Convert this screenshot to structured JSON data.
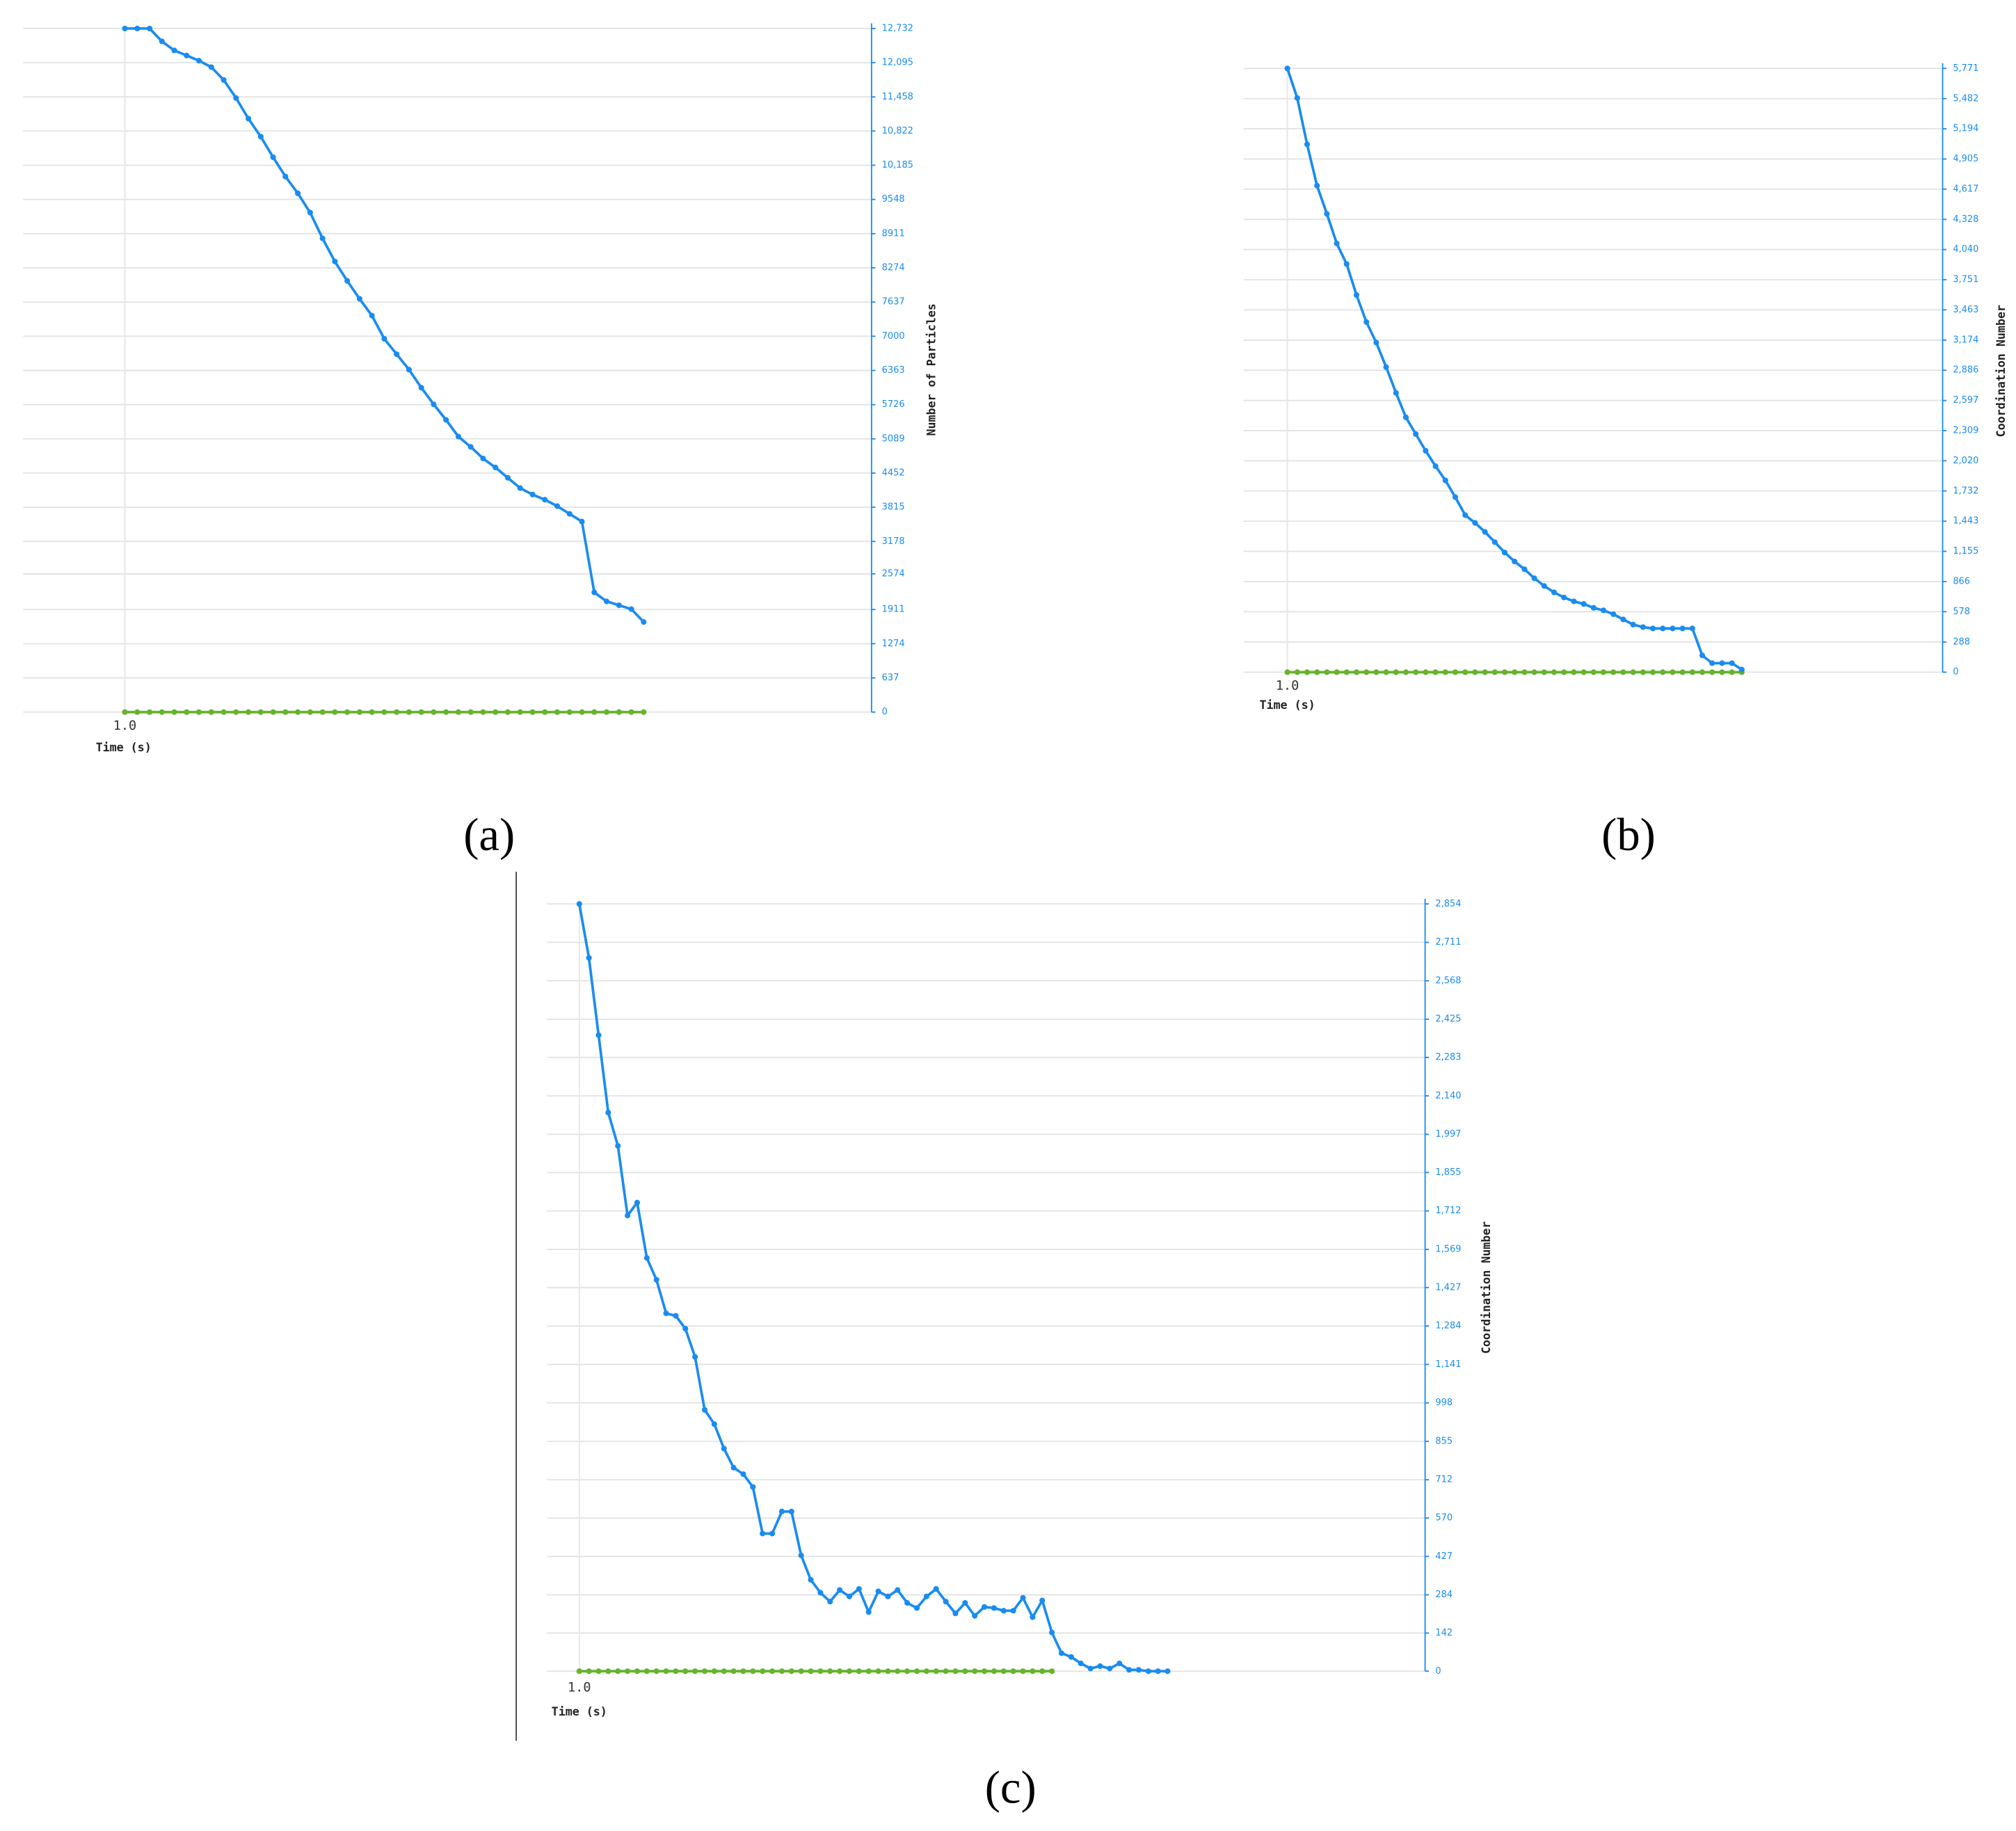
{
  "chart_data": [
    {
      "type": "line",
      "panel_label": "(a)",
      "x_label": "Time (s)",
      "y_label": "Number of Particles",
      "categories": [
        "1.0",
        null,
        null,
        null,
        null,
        null,
        null,
        null,
        null,
        null,
        null,
        null,
        null,
        null,
        null,
        null,
        null,
        null,
        null,
        null,
        null,
        null,
        null,
        null,
        null,
        null,
        null,
        null,
        null,
        null,
        null,
        null,
        null,
        null,
        null,
        null,
        null,
        null,
        null,
        null,
        null,
        null,
        null
      ],
      "series": [
        {
          "color": "#1a8cf0",
          "values": [
            12732,
            12732,
            12732,
            12492,
            12324,
            12228,
            12132,
            12012,
            11773,
            11437,
            11053,
            10718,
            10334,
            9974,
            9663,
            9303,
            8824,
            8392,
            8032,
            7697,
            7385,
            6953,
            6666,
            6378,
            6042,
            5731,
            5443,
            5131,
            4939,
            4723,
            4556,
            4364,
            4172,
            4052,
            3956,
            3836,
            3692,
            3549,
            2230,
            2062,
            1990,
            1918,
            1678
          ]
        },
        {
          "color": "#66b32e",
          "values": [
            0,
            0,
            0,
            0,
            0,
            0,
            0,
            0,
            0,
            0,
            0,
            0,
            0,
            0,
            0,
            0,
            0,
            0,
            0,
            0,
            0,
            0,
            0,
            0,
            0,
            0,
            0,
            0,
            0,
            0,
            0,
            0,
            0,
            0,
            0,
            0,
            0,
            0,
            0,
            0,
            0,
            0,
            0
          ]
        }
      ],
      "ylim": [
        0,
        12732
      ],
      "yticks": [
        0,
        637,
        1274,
        1911,
        2574,
        3178,
        3815,
        4452,
        5089,
        5726,
        6363,
        7000,
        7637,
        8274,
        8911,
        9548,
        {
          "value": 10185,
          "label": "10,185"
        },
        {
          "value": 10822,
          "label": "10,822"
        },
        {
          "value": 11458,
          "label": "11,458"
        },
        {
          "value": 12095,
          "label": "12,095"
        },
        {
          "value": 12732,
          "label": "12,732"
        }
      ],
      "grid": true
    },
    {
      "type": "line",
      "panel_label": "(b)",
      "x_label": "Time (s)",
      "y_label": "Coordination Number",
      "categories": [
        "1.0",
        null,
        null,
        null,
        null,
        null,
        null,
        null,
        null,
        null,
        null,
        null,
        null,
        null,
        null,
        null,
        null,
        null,
        null,
        null,
        null,
        null,
        null,
        null,
        null,
        null,
        null,
        null,
        null,
        null,
        null,
        null,
        null,
        null,
        null,
        null,
        null,
        null,
        null,
        null,
        null,
        null,
        null,
        null,
        null,
        null,
        null
      ],
      "series": [
        {
          "color": "#1a8cf0",
          "values": [
            5771,
            5488,
            5045,
            4651,
            4381,
            4098,
            3901,
            3605,
            3347,
            3150,
            2916,
            2670,
            2436,
            2276,
            2116,
            1969,
            1833,
            1673,
            1501,
            1427,
            1341,
            1243,
            1144,
            1058,
            984,
            898,
            824,
            763,
            714,
            677,
            652,
            615,
            591,
            554,
            504,
            455,
            431,
            418,
            418,
            418,
            418,
            418,
            160,
            86,
            86,
            86,
            25
          ]
        },
        {
          "color": "#66b32e",
          "values": [
            0,
            0,
            0,
            0,
            0,
            0,
            0,
            0,
            0,
            0,
            0,
            0,
            0,
            0,
            0,
            0,
            0,
            0,
            0,
            0,
            0,
            0,
            0,
            0,
            0,
            0,
            0,
            0,
            0,
            0,
            0,
            0,
            0,
            0,
            0,
            0,
            0,
            0,
            0,
            0,
            0,
            0,
            0,
            0,
            0,
            0,
            0
          ]
        }
      ],
      "ylim": [
        0,
        5771
      ],
      "yticks": [
        0,
        288,
        578,
        866,
        {
          "value": 1155,
          "label": "1,155"
        },
        {
          "value": 1443,
          "label": "1,443"
        },
        {
          "value": 1732,
          "label": "1,732"
        },
        {
          "value": 2020,
          "label": "2,020"
        },
        {
          "value": 2309,
          "label": "2,309"
        },
        {
          "value": 2597,
          "label": "2,597"
        },
        {
          "value": 2886,
          "label": "2,886"
        },
        {
          "value": 3174,
          "label": "3,174"
        },
        {
          "value": 3463,
          "label": "3,463"
        },
        {
          "value": 3751,
          "label": "3,751"
        },
        {
          "value": 4040,
          "label": "4,040"
        },
        {
          "value": 4328,
          "label": "4,328"
        },
        {
          "value": 4617,
          "label": "4,617"
        },
        {
          "value": 4905,
          "label": "4,905"
        },
        {
          "value": 5194,
          "label": "5,194"
        },
        {
          "value": 5482,
          "label": "5,482"
        },
        {
          "value": 5771,
          "label": "5,771"
        }
      ],
      "grid": true
    },
    {
      "type": "line",
      "panel_label": "(c)",
      "x_label": "Time (s)",
      "y_label": "Coordination Number",
      "categories": [
        "1.0",
        null,
        null,
        null,
        null,
        null,
        null,
        null,
        null,
        null,
        null,
        null,
        null,
        null,
        null,
        null,
        null,
        null,
        null,
        null,
        null,
        null,
        null,
        null,
        null,
        null,
        null,
        null,
        null,
        null,
        null,
        null,
        null,
        null,
        null,
        null,
        null,
        null,
        null,
        null,
        null,
        null,
        null,
        null,
        null,
        null,
        null,
        null,
        null,
        null,
        null,
        null,
        null,
        null,
        null,
        null,
        null,
        null,
        null,
        null,
        null,
        null
      ],
      "series": [
        {
          "color": "#1a8cf0",
          "values": [
            2854,
            2653,
            2366,
            2078,
            1954,
            1695,
            1743,
            1537,
            1456,
            1331,
            1322,
            1274,
            1169,
            972,
            919,
            828,
            757,
            733,
            685,
            512,
            512,
            594,
            594,
            431,
            340,
            292,
            259,
            302,
            278,
            306,
            220,
            297,
            278,
            302,
            254,
            235,
            278,
            306,
            259,
            215,
            254,
            206,
            239,
            235,
            225,
            225,
            273,
            201,
            263,
            144,
            67,
            53,
            29,
            10,
            19,
            10,
            29,
            5,
            5,
            0,
            0,
            0
          ]
        },
        {
          "color": "#66b32e",
          "values": [
            0,
            0,
            0,
            0,
            0,
            0,
            0,
            0,
            0,
            0,
            0,
            0,
            0,
            0,
            0,
            0,
            0,
            0,
            0,
            0,
            0,
            0,
            0,
            0,
            0,
            0,
            0,
            0,
            0,
            0,
            0,
            0,
            0,
            0,
            0,
            0,
            0,
            0,
            0,
            0,
            0,
            0,
            0,
            0,
            0,
            0,
            0,
            0,
            0,
            0,
            null,
            null,
            null,
            null,
            null,
            null,
            null,
            null,
            null,
            null,
            null,
            null
          ]
        }
      ],
      "ylim": [
        0,
        2854
      ],
      "yticks": [
        0,
        142,
        284,
        427,
        570,
        712,
        855,
        998,
        {
          "value": 1141,
          "label": "1,141"
        },
        {
          "value": 1284,
          "label": "1,284"
        },
        {
          "value": 1427,
          "label": "1,427"
        },
        {
          "value": 1569,
          "label": "1,569"
        },
        {
          "value": 1712,
          "label": "1,712"
        },
        {
          "value": 1855,
          "label": "1,855"
        },
        {
          "value": 1997,
          "label": "1,997"
        },
        {
          "value": 2140,
          "label": "2,140"
        },
        {
          "value": 2283,
          "label": "2,283"
        },
        {
          "value": 2425,
          "label": "2,425"
        },
        {
          "value": 2568,
          "label": "2,568"
        },
        {
          "value": 2711,
          "label": "2,711"
        },
        {
          "value": 2854,
          "label": "2,854"
        }
      ],
      "grid": true
    }
  ]
}
